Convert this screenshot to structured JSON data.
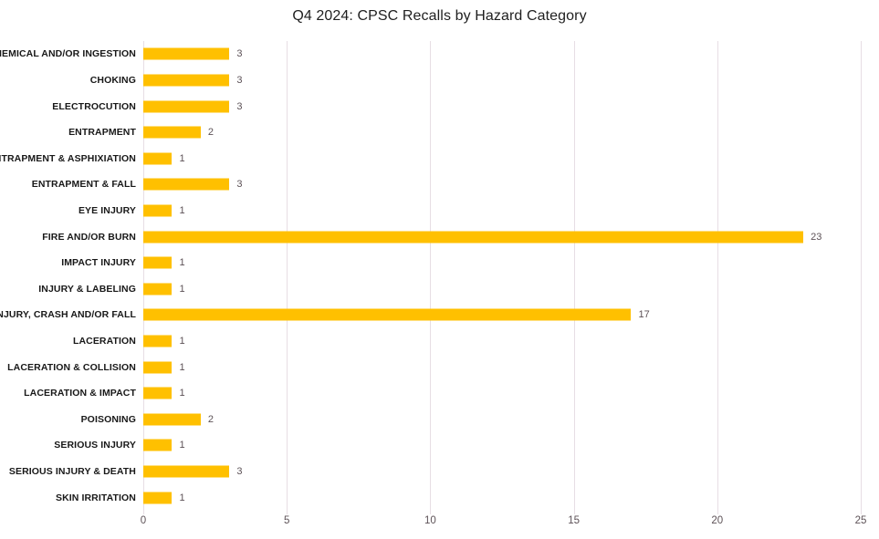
{
  "chart_data": {
    "type": "bar",
    "orientation": "horizontal",
    "title": "Q4 2024: CPSC Recalls by Hazard Category",
    "categories": [
      "CHEMICAL AND/OR INGESTION",
      "CHOKING",
      "ELECTROCUTION",
      "ENTRAPMENT",
      "ENTRAPMENT & ASPHIXIATION",
      "ENTRAPMENT & FALL",
      "EYE INJURY",
      "FIRE AND/OR BURN",
      "IMPACT INJURY",
      "INJURY & LABELING",
      "INJURY, CRASH AND/OR FALL",
      "LACERATION",
      "LACERATION & COLLISION",
      "LACERATION & IMPACT",
      "POISONING",
      "SERIOUS INJURY",
      "SERIOUS INJURY & DEATH",
      "SKIN IRRITATION"
    ],
    "values": [
      3,
      3,
      3,
      2,
      1,
      3,
      1,
      23,
      1,
      1,
      17,
      1,
      1,
      1,
      2,
      1,
      3,
      1
    ],
    "xlabel": "",
    "ylabel": "",
    "xlim": [
      0,
      25
    ],
    "xticks": [
      0,
      5,
      10,
      15,
      20,
      25
    ],
    "grid": true,
    "legend": false,
    "colors": {
      "bar": "#FFC000",
      "gridline": "#e7dee4",
      "category_label": "#181818",
      "value_label": "#5d5257",
      "tick_label": "#5d5257",
      "title": "#1f1f1f"
    }
  }
}
